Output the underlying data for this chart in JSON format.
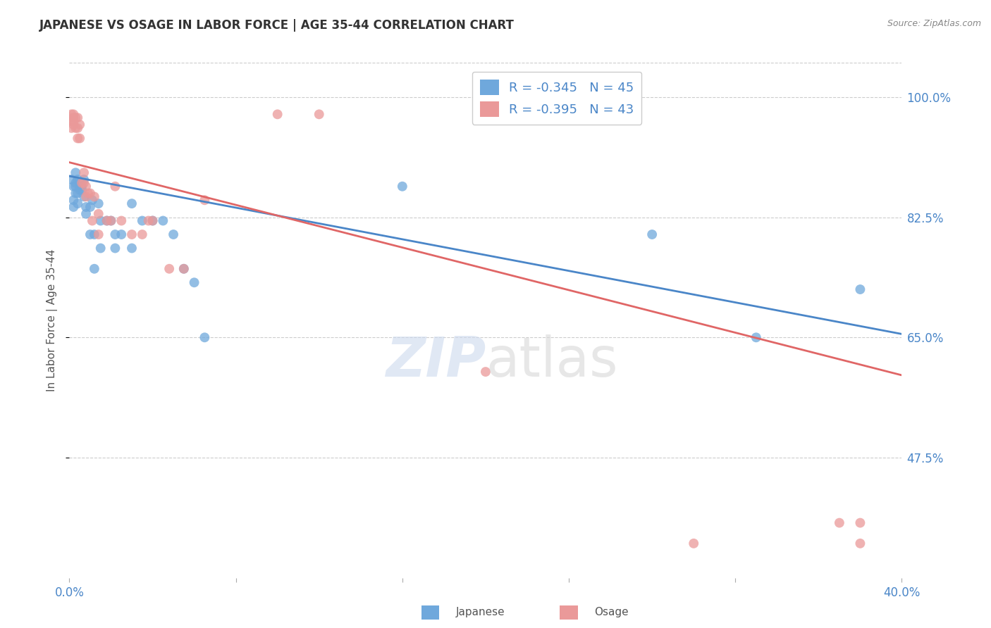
{
  "title": "JAPANESE VS OSAGE IN LABOR FORCE | AGE 35-44 CORRELATION CHART",
  "source": "Source: ZipAtlas.com",
  "ylabel": "In Labor Force | Age 35-44",
  "ytick_labels": [
    "100.0%",
    "82.5%",
    "65.0%",
    "47.5%"
  ],
  "ytick_values": [
    1.0,
    0.825,
    0.65,
    0.475
  ],
  "xlim": [
    0.0,
    0.4
  ],
  "ylim": [
    0.3,
    1.05
  ],
  "legend_japanese": "R = -0.345   N = 45",
  "legend_osage": "R = -0.395   N = 43",
  "legend_label1": "Japanese",
  "legend_label2": "Osage",
  "japanese_color": "#6fa8dc",
  "osage_color": "#ea9999",
  "japanese_line_color": "#4a86c8",
  "osage_line_color": "#e06666",
  "background_color": "#ffffff",
  "japanese_x": [
    0.001,
    0.002,
    0.002,
    0.002,
    0.003,
    0.003,
    0.003,
    0.003,
    0.004,
    0.004,
    0.004,
    0.005,
    0.005,
    0.006,
    0.006,
    0.007,
    0.007,
    0.008,
    0.008,
    0.01,
    0.01,
    0.011,
    0.012,
    0.012,
    0.014,
    0.015,
    0.015,
    0.018,
    0.02,
    0.022,
    0.022,
    0.025,
    0.03,
    0.03,
    0.035,
    0.04,
    0.045,
    0.05,
    0.055,
    0.06,
    0.065,
    0.16,
    0.28,
    0.33,
    0.38
  ],
  "japanese_y": [
    0.88,
    0.87,
    0.85,
    0.84,
    0.89,
    0.875,
    0.87,
    0.86,
    0.88,
    0.86,
    0.845,
    0.875,
    0.865,
    0.87,
    0.865,
    0.88,
    0.855,
    0.84,
    0.83,
    0.84,
    0.8,
    0.85,
    0.8,
    0.75,
    0.845,
    0.82,
    0.78,
    0.82,
    0.82,
    0.78,
    0.8,
    0.8,
    0.78,
    0.845,
    0.82,
    0.82,
    0.82,
    0.8,
    0.75,
    0.73,
    0.65,
    0.87,
    0.8,
    0.65,
    0.72
  ],
  "osage_x": [
    0.001,
    0.001,
    0.001,
    0.002,
    0.002,
    0.002,
    0.002,
    0.003,
    0.003,
    0.004,
    0.004,
    0.004,
    0.005,
    0.005,
    0.006,
    0.007,
    0.007,
    0.008,
    0.008,
    0.009,
    0.01,
    0.011,
    0.012,
    0.014,
    0.014,
    0.018,
    0.02,
    0.022,
    0.025,
    0.03,
    0.035,
    0.038,
    0.04,
    0.048,
    0.055,
    0.065,
    0.1,
    0.12,
    0.2,
    0.3,
    0.37,
    0.38,
    0.38
  ],
  "osage_y": [
    0.975,
    0.965,
    0.955,
    0.975,
    0.965,
    0.97,
    0.96,
    0.97,
    0.955,
    0.97,
    0.955,
    0.94,
    0.96,
    0.94,
    0.875,
    0.89,
    0.875,
    0.87,
    0.855,
    0.86,
    0.86,
    0.82,
    0.855,
    0.83,
    0.8,
    0.82,
    0.82,
    0.87,
    0.82,
    0.8,
    0.8,
    0.82,
    0.82,
    0.75,
    0.75,
    0.85,
    0.975,
    0.975,
    0.6,
    0.35,
    0.38,
    0.35,
    0.38
  ],
  "japanese_trendline_x": [
    0.0,
    0.4
  ],
  "japanese_trendline_y": [
    0.885,
    0.655
  ],
  "osage_trendline_x": [
    0.0,
    0.4
  ],
  "osage_trendline_y": [
    0.905,
    0.595
  ],
  "grid_color": "#cccccc",
  "tick_color": "#4a86c8",
  "title_color": "#333333",
  "label_color": "#555555",
  "source_color": "#888888"
}
